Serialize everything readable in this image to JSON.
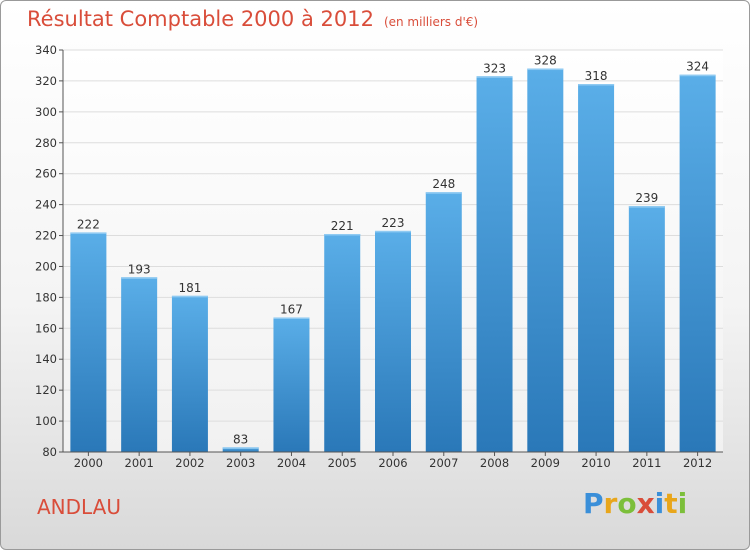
{
  "header": {
    "title": "Résultat Comptable 2000 à 2012",
    "subtitle": "(en milliers d'€)"
  },
  "footer": {
    "commune": "ANDLAU",
    "logo_letters": [
      "P",
      "r",
      "o",
      "x",
      "i",
      "t",
      "i"
    ],
    "logo_colors": [
      "#3a8fd9",
      "#e8a61b",
      "#7cbf3a",
      "#d94d3a",
      "#3a8fd9",
      "#e8a61b",
      "#7cbf3a"
    ]
  },
  "chart_data": {
    "type": "bar",
    "categories": [
      "2000",
      "2001",
      "2002",
      "2003",
      "2004",
      "2005",
      "2006",
      "2007",
      "2008",
      "2009",
      "2010",
      "2011",
      "2012"
    ],
    "values": [
      222,
      193,
      181,
      83,
      167,
      221,
      223,
      248,
      323,
      328,
      318,
      239,
      324
    ],
    "ylim": [
      80,
      340
    ],
    "yticks": [
      80,
      100,
      120,
      140,
      160,
      180,
      200,
      220,
      240,
      260,
      280,
      300,
      320,
      340
    ],
    "grid": true,
    "colors": {
      "bar_top": "#5aaee8",
      "bar_bottom": "#2a78b8",
      "grid": "#dddddd"
    }
  }
}
